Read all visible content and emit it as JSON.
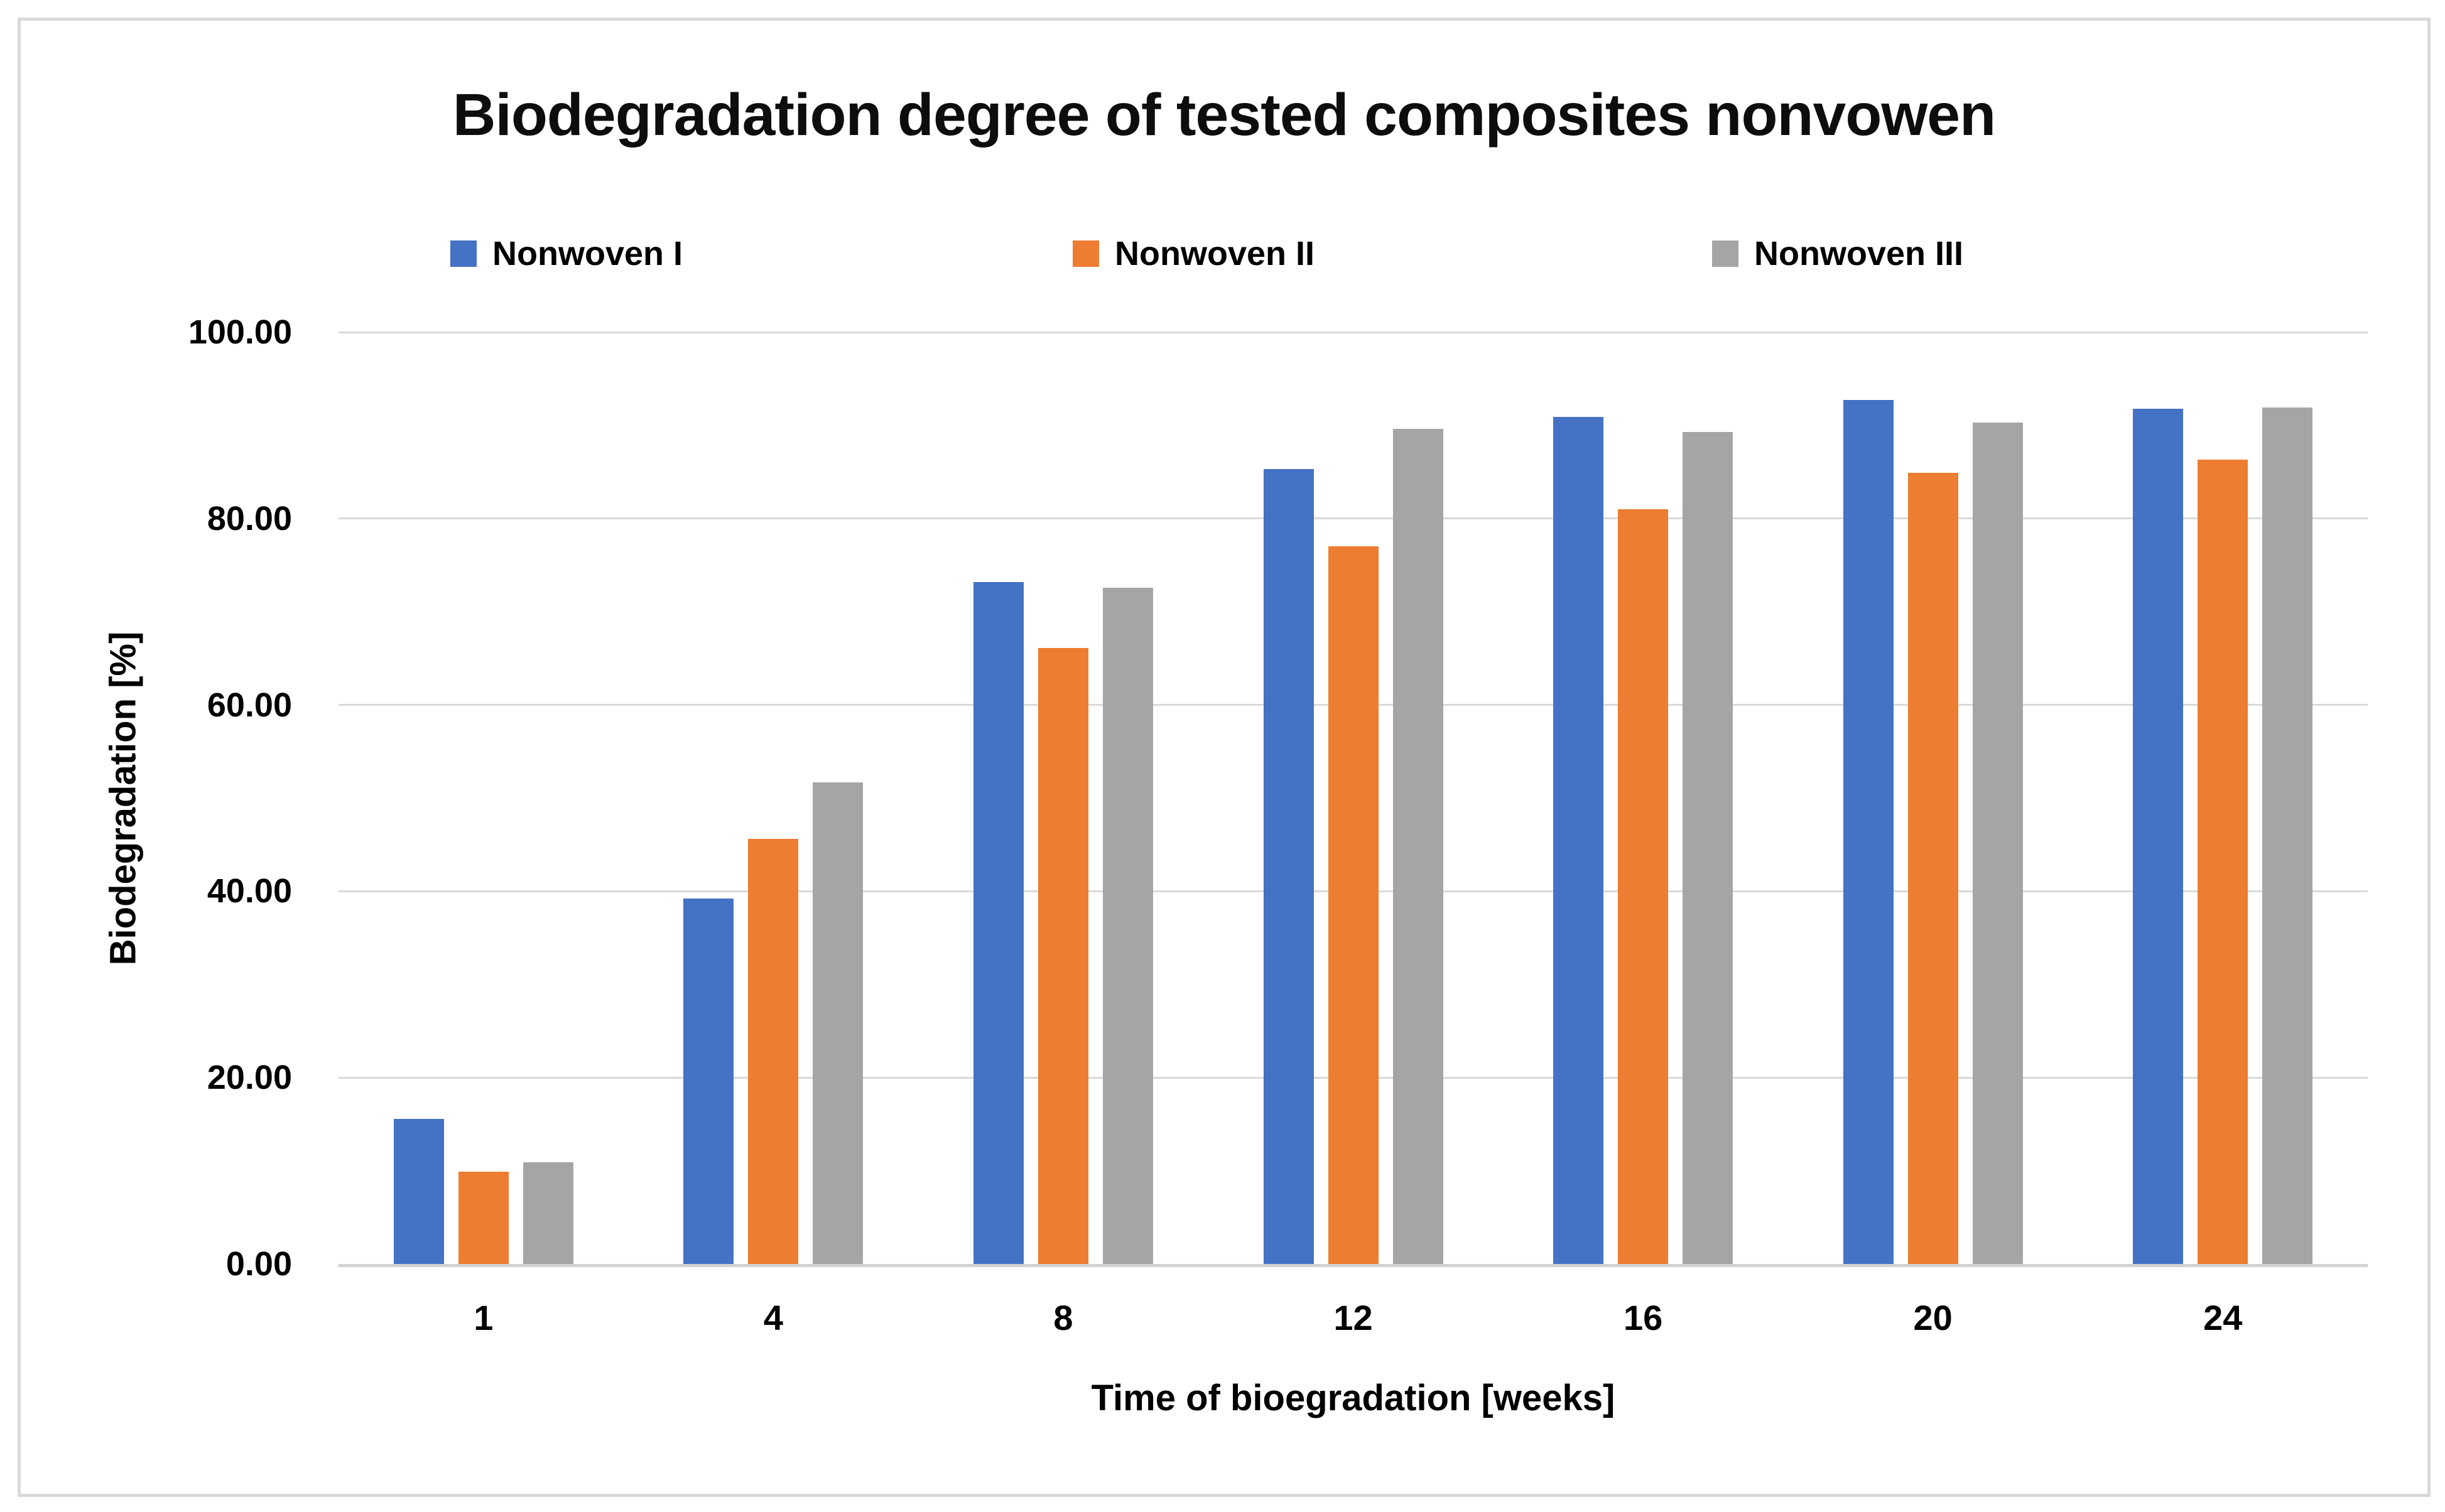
{
  "chart_data": {
    "type": "bar",
    "title": "Biodegradation degree of tested composites nonvowen",
    "xlabel": "Time of bioegradation [weeks]",
    "ylabel": "Biodegradation [%]",
    "categories": [
      "1",
      "4",
      "8",
      "12",
      "16",
      "20",
      "24"
    ],
    "series": [
      {
        "name": "Nonwoven I",
        "color": "#4472C4",
        "values": [
          15.6,
          39.2,
          73.2,
          85.3,
          90.9,
          92.7,
          91.8
        ]
      },
      {
        "name": "Nonwoven II",
        "color": "#ED7D31",
        "values": [
          9.9,
          45.6,
          66.1,
          77.0,
          81.0,
          84.9,
          86.3
        ]
      },
      {
        "name": "Nonwoven III",
        "color": "#A5A5A5",
        "values": [
          10.9,
          51.7,
          72.6,
          89.6,
          89.3,
          90.3,
          91.9
        ]
      }
    ],
    "ylim": [
      0,
      100
    ],
    "yticks": [
      0,
      20,
      40,
      60,
      80,
      100
    ],
    "ytick_labels": [
      "0.00",
      "20.00",
      "40.00",
      "60.00",
      "80.00",
      "100.00"
    ],
    "grid": "horizontal",
    "legend_position": "top"
  },
  "colors": {
    "gridline": "#d9d9d9",
    "axis_line": "#d2d2d2",
    "frame_border": "#d9d9d9",
    "text": "#000000"
  }
}
